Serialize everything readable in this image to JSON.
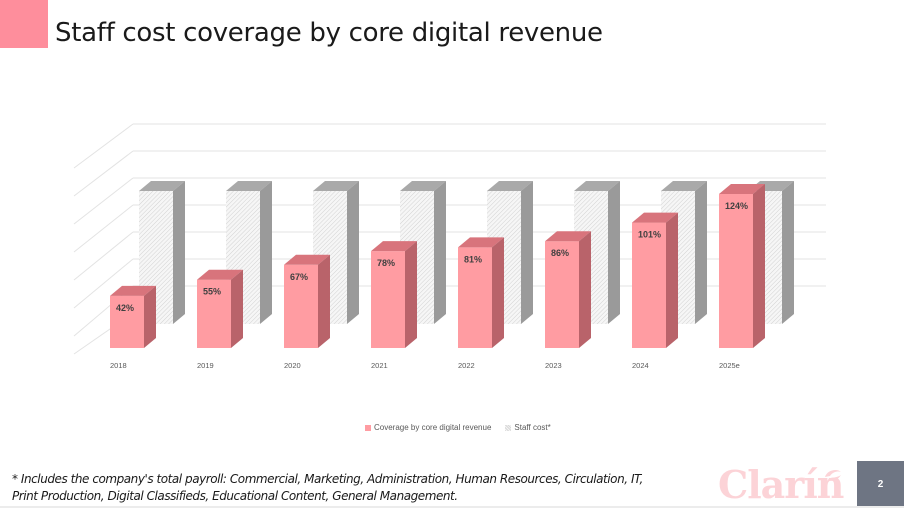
{
  "slide": {
    "title": "Staff cost coverage by core digital revenue",
    "accent_color": "#fe8e9c",
    "footnote_line1": "* Includes the company's total payroll: Commercial, Marketing, Administration, Human Resources, Circulation, IT,",
    "footnote_line2": "Print Production, Digital Classifieds, Educational Content, General Management.",
    "logo_text": "Clarín",
    "page_number": "2"
  },
  "chart_data": {
    "type": "bar",
    "style": "3d-clustered-column",
    "title": "",
    "xlabel": "",
    "ylabel": "",
    "categories": [
      "2018",
      "2019",
      "2020",
      "2021",
      "2022",
      "2023",
      "2024",
      "2025e"
    ],
    "series": [
      {
        "name": "Coverage by core digital revenue",
        "color": "#ff9ca2",
        "values": [
          42,
          55,
          67,
          78,
          81,
          86,
          101,
          124
        ],
        "labels": [
          "42%",
          "55%",
          "67%",
          "78%",
          "81%",
          "86%",
          "101%",
          "124%"
        ]
      },
      {
        "name": "Staff cost*",
        "color": "#ececec",
        "values": [
          100,
          100,
          100,
          100,
          100,
          100,
          100,
          100
        ],
        "labels": []
      }
    ],
    "ylim": [
      0,
      140
    ],
    "grid": true,
    "legend_position": "bottom"
  }
}
